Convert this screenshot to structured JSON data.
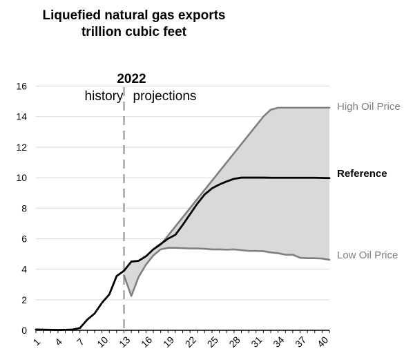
{
  "chart_data": {
    "type": "line",
    "title": "Liquefied natural gas exports",
    "subtitle": "trillion cubic feet",
    "xlabel": "",
    "ylabel": "",
    "ylim": [
      0,
      16
    ],
    "yticks": [
      "0",
      "2",
      "4",
      "6",
      "8",
      "10",
      "12",
      "14",
      "16"
    ],
    "xticks": [
      "1",
      "4",
      "7",
      "10",
      "13",
      "16",
      "19",
      "22",
      "25",
      "28",
      "31",
      "34",
      "37",
      "40"
    ],
    "divider": {
      "year": "2022",
      "left_label": "history",
      "right_label": "projections",
      "x": 13
    },
    "colors": {
      "reference": "#000000",
      "high": "#7f7f7f",
      "low": "#7f7f7f",
      "band": "#d9d9d9",
      "divider": "#a6a6a6",
      "high_label": "#7f7f7f",
      "low_label": "#7f7f7f"
    },
    "series": [
      {
        "name": "Reference",
        "x": [
          1,
          2,
          3,
          4,
          5,
          6,
          7,
          8,
          9,
          10,
          11,
          12,
          13,
          14,
          15,
          16,
          17,
          18,
          19,
          20,
          21,
          22,
          23,
          24,
          25,
          26,
          27,
          28,
          29,
          30,
          31,
          32,
          33,
          34,
          35,
          36,
          37,
          38,
          39,
          40,
          41
        ],
        "values": [
          0.05,
          0.04,
          0.03,
          0.02,
          0.03,
          0.05,
          0.15,
          0.7,
          1.1,
          1.8,
          2.35,
          3.55,
          3.9,
          4.5,
          4.55,
          4.85,
          5.3,
          5.65,
          6.0,
          6.25,
          6.9,
          7.6,
          8.3,
          8.9,
          9.3,
          9.55,
          9.75,
          9.92,
          10.0,
          10.0,
          10.0,
          10.0,
          9.99,
          9.99,
          9.99,
          9.99,
          9.99,
          9.99,
          9.99,
          9.98,
          9.97
        ]
      },
      {
        "name": "High Oil Price",
        "x": [
          13,
          14,
          15,
          16,
          17,
          18,
          19,
          20,
          21,
          22,
          23,
          24,
          25,
          26,
          27,
          28,
          29,
          30,
          31,
          32,
          33,
          34,
          35,
          36,
          37,
          38,
          39,
          40,
          41
        ],
        "values": [
          3.9,
          4.5,
          4.55,
          4.85,
          5.3,
          5.6,
          6.2,
          6.8,
          7.4,
          8.0,
          8.6,
          9.2,
          9.8,
          10.4,
          11.0,
          11.6,
          12.2,
          12.8,
          13.4,
          14.0,
          14.45,
          14.58,
          14.58,
          14.58,
          14.58,
          14.58,
          14.58,
          14.58,
          14.58
        ]
      },
      {
        "name": "Low Oil Price",
        "x": [
          13,
          14,
          15,
          16,
          17,
          18,
          19,
          20,
          21,
          22,
          23,
          24,
          25,
          26,
          27,
          28,
          29,
          30,
          31,
          32,
          33,
          34,
          35,
          36,
          37,
          38,
          39,
          40,
          41
        ],
        "values": [
          3.6,
          2.25,
          3.5,
          4.3,
          4.9,
          5.3,
          5.4,
          5.4,
          5.38,
          5.36,
          5.36,
          5.34,
          5.3,
          5.3,
          5.28,
          5.3,
          5.25,
          5.2,
          5.2,
          5.18,
          5.1,
          5.05,
          4.95,
          4.95,
          4.75,
          4.72,
          4.72,
          4.7,
          4.62
        ]
      }
    ]
  }
}
